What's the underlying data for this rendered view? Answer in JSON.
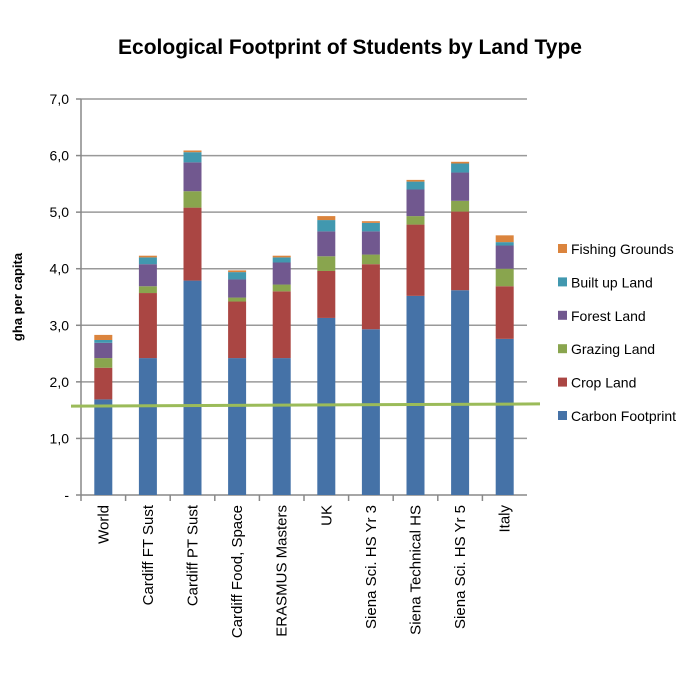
{
  "chart_data": {
    "type": "bar",
    "stacked": true,
    "title": "Ecological Footprint of Students by Land Type",
    "xlabel": "",
    "ylabel": "gha per capita",
    "ylim": [
      0,
      7
    ],
    "yticks": [
      "-",
      "1,0",
      "2,0",
      "3,0",
      "4,0",
      "5,0",
      "6,0",
      "7,0"
    ],
    "grid": true,
    "legend": "right",
    "categories": [
      "World",
      "Cardiff FT Sust",
      "Cardiff PT Sust",
      "Cardiff Food, Space",
      "ERASMUS Masters",
      "UK",
      "Siena Sci. HS Yr 3",
      "Siena Technical HS",
      "Siena Sci. HS Yr 5",
      "Italy"
    ],
    "series": [
      {
        "name": "Carbon Footprint",
        "color": "#4572A7",
        "values": [
          1.69,
          2.42,
          3.79,
          2.42,
          2.42,
          3.13,
          2.93,
          3.52,
          3.62,
          2.76
        ]
      },
      {
        "name": "Crop Land",
        "color": "#AA4643",
        "values": [
          0.56,
          1.15,
          1.29,
          1.0,
          1.18,
          0.83,
          1.15,
          1.26,
          1.39,
          0.93
        ]
      },
      {
        "name": "Grazing Land",
        "color": "#89A54E",
        "values": [
          0.17,
          0.12,
          0.29,
          0.07,
          0.12,
          0.26,
          0.17,
          0.15,
          0.19,
          0.31
        ]
      },
      {
        "name": "Forest Land",
        "color": "#71588F",
        "values": [
          0.27,
          0.39,
          0.51,
          0.32,
          0.39,
          0.44,
          0.41,
          0.47,
          0.5,
          0.41
        ]
      },
      {
        "name": "Built up Land",
        "color": "#4198AF",
        "values": [
          0.05,
          0.12,
          0.18,
          0.13,
          0.09,
          0.2,
          0.15,
          0.14,
          0.16,
          0.06
        ]
      },
      {
        "name": "Fishing Grounds",
        "color": "#DB843D",
        "values": [
          0.09,
          0.03,
          0.03,
          0.03,
          0.03,
          0.07,
          0.03,
          0.03,
          0.03,
          0.12
        ]
      }
    ],
    "reference_line": {
      "value": [
        1.57,
        1.61
      ],
      "color": "#9BBB59"
    }
  }
}
